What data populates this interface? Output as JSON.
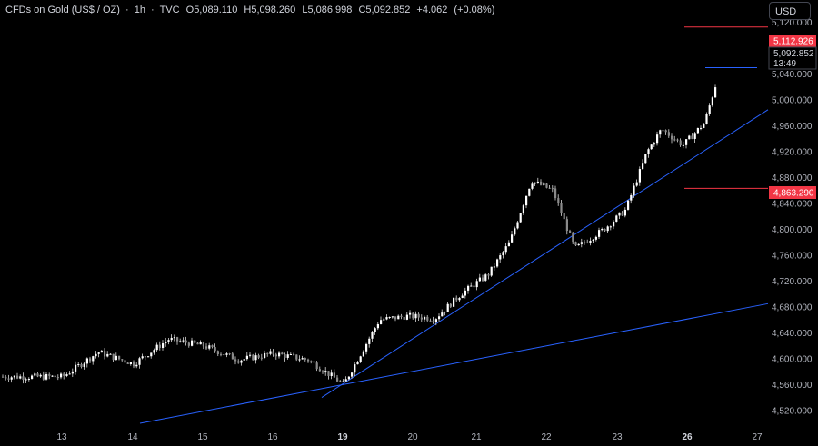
{
  "header": {
    "symbol": "CFDs on Gold (US$ / OZ)",
    "interval": "1h",
    "source": "TVC",
    "open_label": "O",
    "open": "5,089.110",
    "high_label": "H",
    "high": "5,098.260",
    "low_label": "L",
    "low": "5,086.998",
    "close_label": "C",
    "close": "5,092.852",
    "change": "+4.062",
    "change_pct": "(+0.08%)"
  },
  "currency_button": "USD",
  "price_tags": {
    "upper": "5,112.926",
    "current": "5,092.852",
    "countdown": "13:49",
    "lower": "4,863.290"
  },
  "colors": {
    "background": "#000000",
    "candle": "#d9d9d9",
    "trendline": "#2962ff",
    "level": "#f23645",
    "axis_text": "#b2b5be"
  },
  "chart_data": {
    "type": "candlestick",
    "x_ticks": [
      "13",
      "14",
      "15",
      "16",
      "19",
      "20",
      "21",
      "22",
      "23",
      "26",
      "27"
    ],
    "y_ticks": [
      "4,520.000",
      "4,560.000",
      "4,600.000",
      "4,640.000",
      "4,680.000",
      "4,720.000",
      "4,760.000",
      "4,800.000",
      "4,840.000",
      "4,880.000",
      "4,920.000",
      "4,960.000",
      "5,000.000",
      "5,040.000",
      "5,080.000",
      "5,120.000"
    ],
    "ylim": [
      4500,
      5135
    ],
    "horizontal_levels": [
      5112.926,
      4863.29
    ],
    "close_path": [
      [
        13,
        4572
      ],
      [
        13.5,
        4610
      ],
      [
        14,
        4592
      ],
      [
        14.5,
        4630
      ],
      [
        15,
        4620
      ],
      [
        15.5,
        4598
      ],
      [
        16,
        4608
      ],
      [
        16.5,
        4598
      ],
      [
        18.6,
        4560
      ],
      [
        19.1,
        4660
      ],
      [
        19.5,
        4666
      ],
      [
        19.9,
        4662
      ],
      [
        20.3,
        4700
      ],
      [
        20.7,
        4730
      ],
      [
        21,
        4780
      ],
      [
        21.3,
        4875
      ],
      [
        21.6,
        4860
      ],
      [
        21.9,
        4770
      ],
      [
        22.3,
        4800
      ],
      [
        22.6,
        4830
      ],
      [
        22.9,
        4920
      ],
      [
        23.1,
        4955
      ],
      [
        23.4,
        4930
      ],
      [
        23.7,
        4965
      ],
      [
        24.0,
        5080
      ],
      [
        24.2,
        5090
      ]
    ],
    "trendlines": [
      {
        "from": [
          "14",
          4500
        ],
        "to": [
          "27",
          4685
        ]
      },
      {
        "from": [
          "19",
          4540
        ],
        "to": [
          "27",
          4985
        ]
      }
    ],
    "small_level": 5050
  }
}
